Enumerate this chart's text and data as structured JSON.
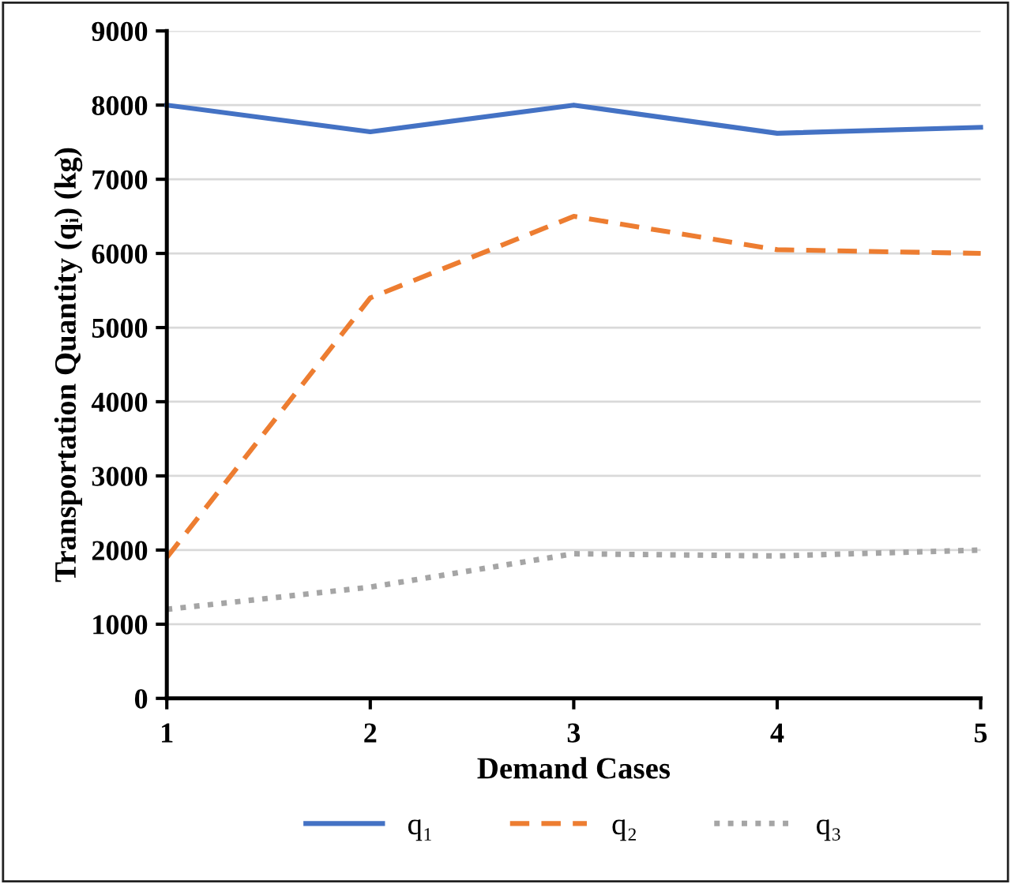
{
  "chart_data": {
    "type": "line",
    "xlabel": "Demand Cases",
    "ylabel": "Transportation Quantity (qᵢ) (kg)",
    "x": [
      1,
      2,
      3,
      4,
      5
    ],
    "xlim": [
      1,
      5
    ],
    "xticks": [
      1,
      2,
      3,
      4,
      5
    ],
    "ylim": [
      0,
      9000
    ],
    "yticks": [
      0,
      1000,
      2000,
      3000,
      4000,
      5000,
      6000,
      7000,
      8000,
      9000
    ],
    "grid": "y",
    "legend": "bottom",
    "marker": "none",
    "series": [
      {
        "name": "q₁",
        "color": "#4472c4",
        "line_style": "solid",
        "values": [
          8000,
          7640,
          8000,
          7620,
          7700
        ]
      },
      {
        "name": "q₂",
        "color": "#ed7d31",
        "line_style": "dashed",
        "values": [
          1900,
          5400,
          6500,
          6050,
          6000
        ]
      },
      {
        "name": "q₃",
        "color": "#a5a5a5",
        "line_style": "dotted",
        "values": [
          1200,
          1500,
          1950,
          1920,
          2000
        ]
      }
    ]
  }
}
